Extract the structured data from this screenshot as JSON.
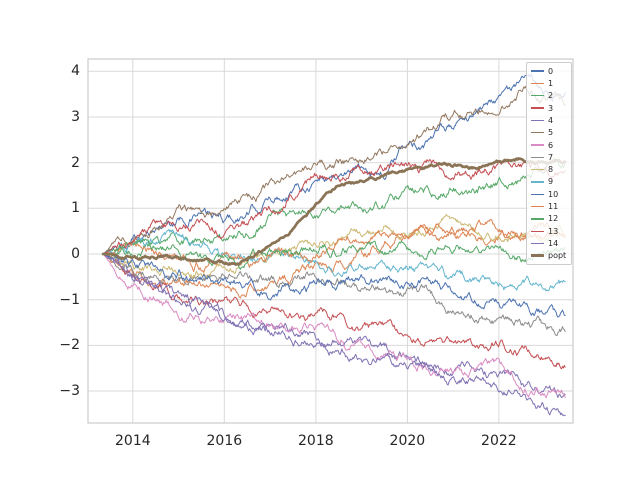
{
  "chart_data": {
    "type": "line",
    "title": "",
    "xlabel": "",
    "ylabel": "",
    "grid": true,
    "legend_position": "upper right",
    "x_range": [
      2013.02,
      2023.62
    ],
    "y_range": [
      -3.7,
      4.27
    ],
    "x_tick_values": [
      2014,
      2016,
      2018,
      2020,
      2022
    ],
    "x_tick_labels": [
      "2014",
      "2016",
      "2018",
      "2020",
      "2022"
    ],
    "y_tick_values": [
      -3,
      -2,
      -1,
      0,
      1,
      2,
      3,
      4
    ],
    "y_tick_labels": [
      "−3",
      "−2",
      "−1",
      "0",
      "1",
      "2",
      "3",
      "4"
    ],
    "waypoint_years": [
      2013.35,
      2014,
      2014.5,
      2015,
      2015.5,
      2016,
      2016.5,
      2017,
      2017.5,
      2018,
      2018.5,
      2019,
      2019.5,
      2020,
      2020.5,
      2021,
      2021.5,
      2022,
      2022.5,
      2023,
      2023.45
    ],
    "series": [
      {
        "name": "0",
        "color": "#4c72b0",
        "width": 1,
        "values": [
          0,
          0.3,
          0.55,
          0.8,
          0.9,
          0.7,
          0.85,
          1.2,
          1.45,
          1.65,
          1.75,
          1.9,
          1.8,
          2.35,
          2.5,
          2.8,
          3.1,
          3.55,
          3.7,
          3.6,
          3.5
        ]
      },
      {
        "name": "1",
        "color": "#dd8452",
        "width": 1,
        "values": [
          0,
          -0.5,
          -0.6,
          -0.65,
          -0.7,
          -0.75,
          -0.7,
          -0.65,
          -0.5,
          -0.3,
          -0.15,
          0,
          0.2,
          0.3,
          0.4,
          0.5,
          0.45,
          0.35,
          0.4,
          0.45,
          0.5
        ]
      },
      {
        "name": "2",
        "color": "#55a868",
        "width": 1,
        "values": [
          0,
          0.15,
          0.25,
          0.3,
          0.2,
          0.25,
          0.5,
          0.8,
          0.85,
          0.9,
          1.0,
          1.05,
          1.15,
          1.3,
          1.3,
          1.4,
          1.45,
          1.55,
          1.65,
          1.8,
          1.85
        ]
      },
      {
        "name": "3",
        "color": "#c44e52",
        "width": 1,
        "values": [
          0,
          -0.5,
          -0.75,
          -1.0,
          -1.1,
          -1.15,
          -1.2,
          -1.25,
          -1.3,
          -1.3,
          -1.4,
          -1.55,
          -1.7,
          -1.8,
          -1.9,
          -1.95,
          -2.0,
          -1.95,
          -2.1,
          -2.2,
          -2.25
        ]
      },
      {
        "name": "4",
        "color": "#8172b3",
        "width": 1,
        "values": [
          0,
          -0.5,
          -0.7,
          -0.9,
          -1.1,
          -1.35,
          -1.45,
          -1.6,
          -1.55,
          -1.8,
          -1.9,
          -2.0,
          -2.15,
          -2.3,
          -2.4,
          -2.5,
          -2.6,
          -2.7,
          -2.9,
          -3.05,
          -3.15
        ]
      },
      {
        "name": "5",
        "color": "#937860",
        "width": 1,
        "values": [
          0,
          0.4,
          0.7,
          1.0,
          0.95,
          0.9,
          1.1,
          1.4,
          1.7,
          1.9,
          2.0,
          2.1,
          2.2,
          2.5,
          2.7,
          3.0,
          3.2,
          3.4,
          3.6,
          3.45,
          3.35
        ]
      },
      {
        "name": "6",
        "color": "#da8bc3",
        "width": 1,
        "values": [
          0,
          -0.55,
          -0.9,
          -1.25,
          -1.3,
          -1.4,
          -1.5,
          -1.55,
          -1.6,
          -1.55,
          -1.8,
          -2.0,
          -2.1,
          -2.3,
          -2.45,
          -2.55,
          -2.5,
          -2.55,
          -2.8,
          -3.0,
          -3.1
        ]
      },
      {
        "name": "7",
        "color": "#8c8c8c",
        "width": 1,
        "values": [
          0,
          -0.2,
          -0.4,
          -0.5,
          -0.45,
          -0.4,
          -0.5,
          -0.6,
          -0.55,
          -0.5,
          -0.6,
          -0.7,
          -0.75,
          -0.85,
          -0.9,
          -1.2,
          -1.3,
          -1.5,
          -1.55,
          -1.6,
          -1.65
        ]
      },
      {
        "name": "8",
        "color": "#ccb974",
        "width": 1,
        "values": [
          0,
          -0.15,
          -0.3,
          -0.35,
          -0.3,
          -0.25,
          -0.15,
          -0.05,
          0.05,
          0.15,
          0.3,
          0.45,
          0.5,
          0.55,
          0.65,
          0.75,
          0.6,
          0.5,
          0.35,
          0.4,
          0.5
        ]
      },
      {
        "name": "9",
        "color": "#64b5cd",
        "width": 1,
        "values": [
          0,
          0.25,
          0.3,
          0.3,
          0.15,
          -0.05,
          0,
          0.1,
          0,
          -0.1,
          -0.15,
          -0.15,
          -0.2,
          -0.3,
          -0.35,
          -0.55,
          -0.6,
          -0.7,
          -0.75,
          -0.7,
          -0.65
        ]
      },
      {
        "name": "10",
        "color": "#4c72b0",
        "width": 1,
        "values": [
          0,
          -0.3,
          -0.35,
          -0.4,
          -0.5,
          -0.6,
          -0.65,
          -0.75,
          -0.7,
          -0.7,
          -0.6,
          -0.55,
          -0.55,
          -0.6,
          -0.55,
          -0.9,
          -1.0,
          -1.1,
          -1.2,
          -1.35,
          -1.45
        ]
      },
      {
        "name": "11",
        "color": "#dd8452",
        "width": 1,
        "values": [
          0,
          0.1,
          0,
          -0.15,
          -0.2,
          -0.2,
          -0.15,
          -0.1,
          0,
          0.1,
          0.25,
          0.35,
          0.45,
          0.5,
          0.45,
          0.5,
          0.6,
          0.45,
          0.35,
          0.45,
          0.5
        ]
      },
      {
        "name": "12",
        "color": "#55a868",
        "width": 1,
        "values": [
          0,
          0.3,
          0.2,
          0.1,
          -0.05,
          -0.15,
          -0.1,
          0,
          0.05,
          0.1,
          0.15,
          0.2,
          0.1,
          0.15,
          0.1,
          0.25,
          0.2,
          0.1,
          -0.05,
          0,
          0
        ]
      },
      {
        "name": "13",
        "color": "#c44e52",
        "width": 1,
        "values": [
          0,
          0.45,
          0.55,
          0.65,
          0.6,
          0.45,
          0.6,
          0.9,
          1.3,
          1.7,
          1.85,
          1.75,
          1.9,
          1.85,
          1.95,
          1.8,
          1.75,
          1.85,
          1.95,
          1.9,
          1.9
        ]
      },
      {
        "name": "14",
        "color": "#8172b3",
        "width": 1,
        "values": [
          0,
          -0.35,
          -0.7,
          -1.05,
          -1.25,
          -1.5,
          -1.6,
          -1.75,
          -1.8,
          -1.9,
          -2.05,
          -2.2,
          -2.3,
          -2.45,
          -2.55,
          -2.7,
          -2.8,
          -2.9,
          -3.1,
          -3.3,
          -3.45
        ]
      },
      {
        "name": "popt",
        "color": "#8b7355",
        "width": 2.7,
        "values": [
          0,
          -0.05,
          -0.05,
          -0.1,
          -0.15,
          -0.2,
          -0.1,
          0.2,
          0.6,
          1.05,
          1.5,
          1.6,
          1.7,
          1.8,
          1.95,
          1.95,
          1.9,
          2.0,
          2.05,
          2.0,
          2.0
        ]
      }
    ],
    "style": {
      "grid_color": "#d9d9d9",
      "spine_color": "#cccccc",
      "tick_label_color": "#262626",
      "background": "#ffffff"
    }
  }
}
